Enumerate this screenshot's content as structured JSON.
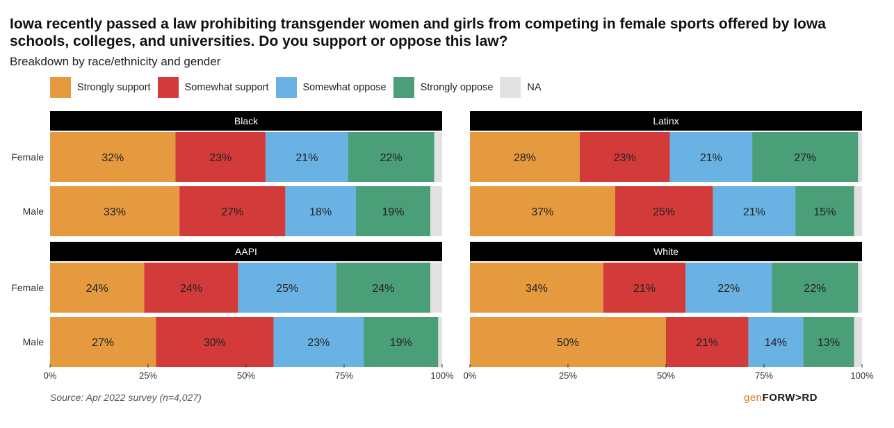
{
  "title": "Iowa recently passed a law prohibiting transgender women and girls from competing in female sports offered by Iowa schools, colleges, and universities. Do you support or oppose this law?",
  "subtitle": "Breakdown by race/ethnicity and gender",
  "source": "Source: Apr 2022 survey (n=4,027)",
  "brand": {
    "gen": "gen",
    "forward": "FORW>RD"
  },
  "legend": [
    {
      "label": "Strongly support",
      "color": "#E59A3F"
    },
    {
      "label": "Somewhat support",
      "color": "#D33B3A"
    },
    {
      "label": "Somewhat oppose",
      "color": "#6BB2E4"
    },
    {
      "label": "Strongly oppose",
      "color": "#4A9E78"
    },
    {
      "label": "NA",
      "color": "#E2E2E2"
    }
  ],
  "chart_data": {
    "type": "bar",
    "stacked": true,
    "orientation": "horizontal",
    "x_ticks": [
      "0%",
      "25%",
      "50%",
      "75%",
      "100%"
    ],
    "xlim": [
      0,
      100
    ],
    "panels": [
      {
        "name": "Black",
        "rows": [
          {
            "label": "Female",
            "values": [
              32,
              23,
              21,
              22,
              2
            ]
          },
          {
            "label": "Male",
            "values": [
              33,
              27,
              18,
              19,
              3
            ]
          }
        ]
      },
      {
        "name": "Latinx",
        "rows": [
          {
            "label": "Female",
            "values": [
              28,
              23,
              21,
              27,
              1
            ]
          },
          {
            "label": "Male",
            "values": [
              37,
              25,
              21,
              15,
              2
            ]
          }
        ]
      },
      {
        "name": "AAPI",
        "rows": [
          {
            "label": "Female",
            "values": [
              24,
              24,
              25,
              24,
              3
            ]
          },
          {
            "label": "Male",
            "values": [
              27,
              30,
              23,
              19,
              1
            ]
          }
        ]
      },
      {
        "name": "White",
        "rows": [
          {
            "label": "Female",
            "values": [
              34,
              21,
              22,
              22,
              1
            ]
          },
          {
            "label": "Male",
            "values": [
              50,
              21,
              14,
              13,
              2
            ]
          }
        ]
      }
    ]
  }
}
